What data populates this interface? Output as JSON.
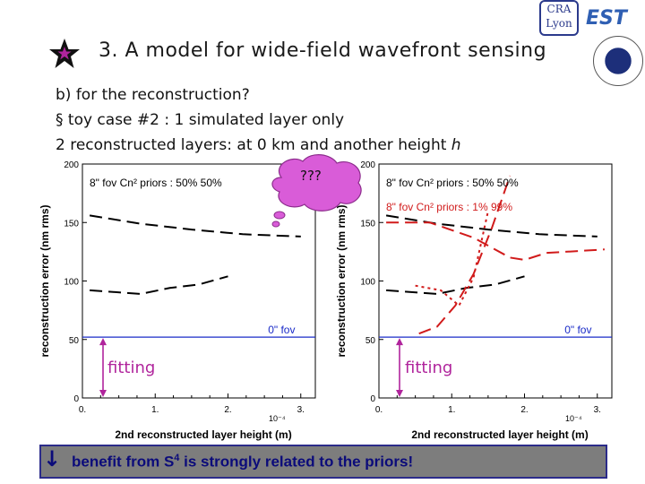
{
  "slide": {
    "title": "3. A model for wide-field wavefront sensing",
    "line_b": "b)  for the reconstruction?",
    "line_toy": "§   toy case #2 : 1 simulated layer only",
    "line_recon_prefix": "2 reconstructed layers: at 0 km and another height ",
    "line_recon_var": "h",
    "bubble": "???",
    "logo_cra_top": "CRA",
    "logo_cra_bottom": "Lyon",
    "logo_est": "EST",
    "banner_arrow": "↓",
    "banner_prefix": "benefit from S",
    "banner_sup": "4",
    "banner_suffix": "  is strongly related to the priors!",
    "fitting_left": "fitting",
    "fitting_right": "fitting"
  },
  "chart_data": [
    {
      "type": "line",
      "ylabel": "reconstruction error (nm rms)",
      "xlabel": "2nd reconstructed layer height (m)",
      "x_multiplier": "10⁻⁴",
      "xlim": [
        0,
        3.2
      ],
      "ylim": [
        0,
        200
      ],
      "x_ticks": [
        "0.",
        "1.",
        "2.",
        "3."
      ],
      "y_ticks": [
        "0",
        "50",
        "100",
        "150",
        "200"
      ],
      "legend": [
        {
          "text": "8\" fov   Cn² priors : 50% 50%",
          "color": "#000000"
        }
      ],
      "annotations": [
        {
          "text": "0\" fov",
          "x": 2.55,
          "y": 53
        }
      ],
      "series": [
        {
          "color": "#000000",
          "dash": "long",
          "x": [
            0.1,
            0.8,
            1.5,
            2.2,
            3.0
          ],
          "y": [
            156,
            149,
            144,
            140,
            138
          ]
        },
        {
          "color": "#000000",
          "dash": "long",
          "x": [
            0.1,
            0.8,
            1.2,
            1.6,
            2.0
          ],
          "y": [
            92,
            89,
            94,
            97,
            104
          ]
        },
        {
          "color": "#1a2bc8",
          "dash": "solid",
          "x": [
            0,
            3.2
          ],
          "y": [
            52,
            52
          ]
        }
      ]
    },
    {
      "type": "line",
      "ylabel": "reconstruction error (nm rms)",
      "xlabel": "2nd reconstructed layer height (m)",
      "x_multiplier": "10⁻⁴",
      "xlim": [
        0,
        3.2
      ],
      "ylim": [
        0,
        200
      ],
      "x_ticks": [
        "0.",
        "1.",
        "2.",
        "3."
      ],
      "y_ticks": [
        "0",
        "50",
        "100",
        "150",
        "200"
      ],
      "legend": [
        {
          "text": "8\" fov   Cn² priors : 50% 50%",
          "color": "#000000"
        },
        {
          "text": "8\" fov   Cn² priors : 1% 99%",
          "color": "#d11b1b"
        }
      ],
      "annotations": [
        {
          "text": "0\" fov",
          "x": 2.55,
          "y": 53
        }
      ],
      "series": [
        {
          "color": "#000000",
          "dash": "long",
          "x": [
            0.1,
            0.8,
            1.5,
            2.2,
            3.0
          ],
          "y": [
            156,
            149,
            144,
            140,
            138
          ]
        },
        {
          "color": "#000000",
          "dash": "long",
          "x": [
            0.1,
            0.8,
            1.2,
            1.6,
            2.0
          ],
          "y": [
            92,
            89,
            94,
            97,
            104
          ]
        },
        {
          "color": "#d11b1b",
          "dash": "long",
          "x": [
            0.1,
            0.7,
            1.3,
            1.8,
            2.0,
            2.3,
            3.1
          ],
          "y": [
            150,
            150,
            137,
            120,
            118,
            124,
            127
          ]
        },
        {
          "color": "#d11b1b",
          "dash": "long",
          "x": [
            0.55,
            0.8,
            1.05,
            1.3,
            1.55,
            1.8
          ],
          "y": [
            55,
            61,
            79,
            106,
            145,
            190
          ]
        },
        {
          "color": "#d11b1b",
          "dash": "dot",
          "x": [
            0.5,
            0.85,
            1.1,
            1.3,
            1.5
          ],
          "y": [
            96,
            92,
            79,
            103,
            160
          ]
        },
        {
          "color": "#1a2bc8",
          "dash": "solid",
          "x": [
            0,
            3.2
          ],
          "y": [
            52,
            52
          ]
        }
      ]
    }
  ]
}
